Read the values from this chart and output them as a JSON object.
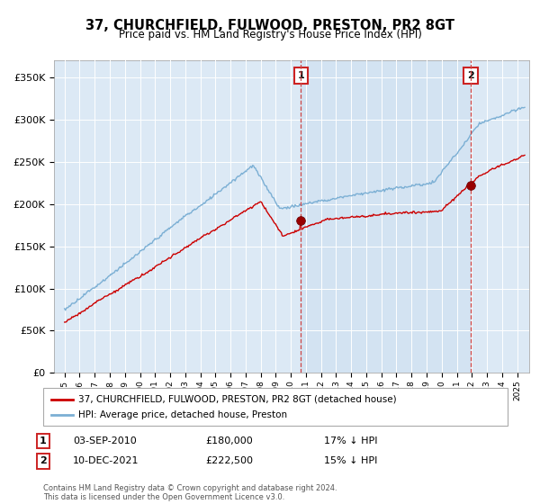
{
  "title": "37, CHURCHFIELD, FULWOOD, PRESTON, PR2 8GT",
  "subtitle": "Price paid vs. HM Land Registry's House Price Index (HPI)",
  "yticks": [
    0,
    50000,
    100000,
    150000,
    200000,
    250000,
    300000,
    350000
  ],
  "ylim": [
    0,
    370000
  ],
  "sale1_date": "03-SEP-2010",
  "sale1_price": 180000,
  "sale1_note": "17% ↓ HPI",
  "sale2_date": "10-DEC-2021",
  "sale2_price": 222500,
  "sale2_note": "15% ↓ HPI",
  "legend_line1": "37, CHURCHFIELD, FULWOOD, PRESTON, PR2 8GT (detached house)",
  "legend_line2": "HPI: Average price, detached house, Preston",
  "footer": "Contains HM Land Registry data © Crown copyright and database right 2024.\nThis data is licensed under the Open Government Licence v3.0.",
  "hpi_color": "#7bafd4",
  "hpi_fill": "#dce9f5",
  "price_color": "#cc0000",
  "bg_color": "#dce9f5",
  "shade_color": "#cde0f0",
  "sale1_t": 2010.67,
  "sale2_t": 2021.92,
  "x_start": 1995.0,
  "x_end": 2025.5,
  "xlim_left": 1994.3,
  "xlim_right": 2025.8
}
